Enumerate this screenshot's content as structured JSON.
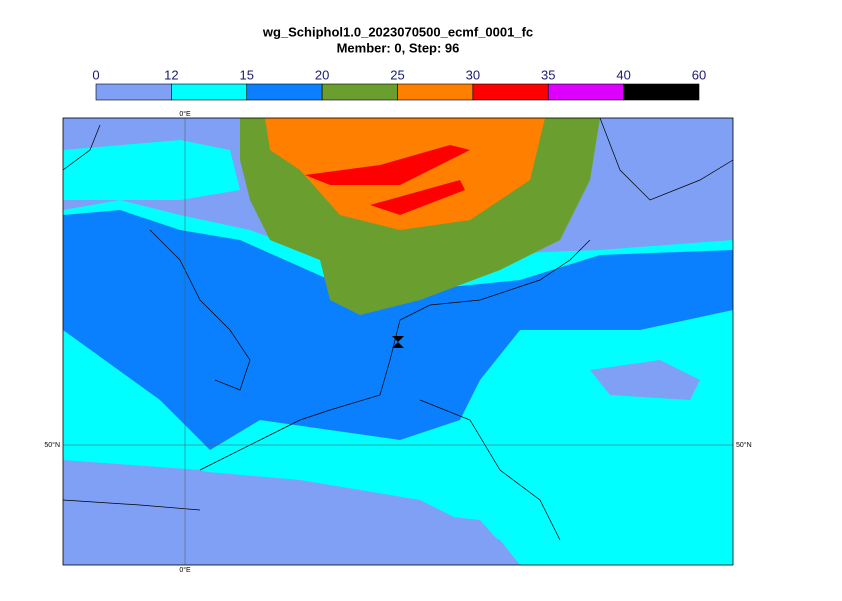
{
  "header": {
    "title": "wg_Schiphol1.0_2023070500_ecmf_0001_fc",
    "subtitle": "Member: 0, Step: 96"
  },
  "colorbar": {
    "ticks": [
      0,
      12,
      15,
      20,
      25,
      30,
      35,
      40,
      60
    ],
    "colors": [
      "#7fa0f5",
      "#00ffff",
      "#0a80ff",
      "#6a9f30",
      "#ff8000",
      "#ff0000",
      "#dd00ff",
      "#000000"
    ]
  },
  "map": {
    "lon_label": "0°E",
    "lat_label": "50°N"
  }
}
